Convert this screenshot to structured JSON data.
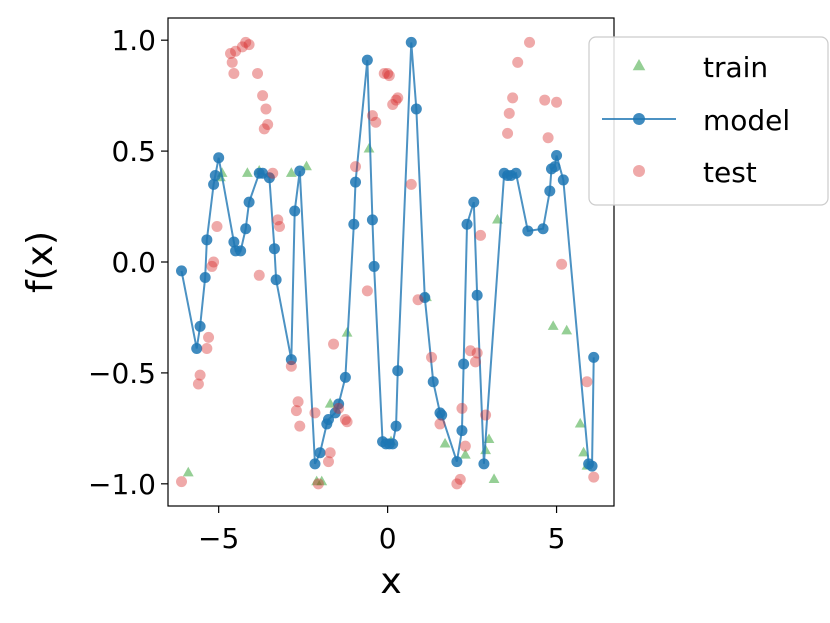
{
  "chart_data": {
    "type": "scatter",
    "xlabel": "x",
    "ylabel": "f(x)",
    "xlim": [
      -6.5,
      6.7
    ],
    "ylim": [
      -1.1,
      1.1
    ],
    "xticks": [
      -5,
      0,
      5
    ],
    "xtick_labels": [
      "−5",
      "0",
      "5"
    ],
    "yticks": [
      1.0,
      0.5,
      0.0,
      -0.5,
      -1.0
    ],
    "ytick_labels": [
      "1.0",
      "0.5",
      "0.0",
      "−0.5",
      "−1.0"
    ],
    "grid": false,
    "legend": {
      "placement": "upper-right outside",
      "entries": [
        "train",
        "model",
        "test"
      ]
    },
    "colors": {
      "train": "#2ca02c",
      "model": "#1f77b4",
      "test": "#d62728"
    },
    "series": [
      {
        "name": "train",
        "marker": "triangle",
        "x": [
          -5.9,
          -4.95,
          -4.9,
          -4.15,
          -3.8,
          -2.85,
          -2.4,
          -2.1,
          -1.95,
          -1.7,
          -1.2,
          -0.55,
          0.1,
          1.15,
          1.7,
          2.3,
          2.9,
          3.0,
          3.15,
          3.25,
          4.9,
          5.3,
          5.7,
          5.8,
          5.9
        ],
        "y": [
          -0.95,
          0.38,
          0.4,
          0.4,
          0.41,
          0.4,
          0.43,
          -0.99,
          -0.99,
          -0.64,
          -0.32,
          0.51,
          -0.81,
          -0.16,
          -0.82,
          -0.87,
          -0.85,
          -0.8,
          -0.98,
          0.19,
          -0.29,
          -0.31,
          -0.73,
          -0.86,
          -0.92
        ]
      },
      {
        "name": "model",
        "marker": "circle",
        "x": [
          -6.1,
          -5.65,
          -5.55,
          -5.4,
          -5.35,
          -5.15,
          -5.1,
          -5.0,
          -4.55,
          -4.5,
          -4.35,
          -4.2,
          -4.1,
          -3.8,
          -3.7,
          -3.5,
          -3.35,
          -3.3,
          -2.85,
          -2.75,
          -2.6,
          -2.15,
          -2.0,
          -1.8,
          -1.75,
          -1.55,
          -1.45,
          -1.25,
          -1.0,
          -0.95,
          -0.6,
          -0.45,
          -0.4,
          -0.15,
          -0.05,
          0.05,
          0.15,
          0.25,
          0.3,
          0.7,
          0.85,
          1.1,
          1.35,
          1.55,
          1.6,
          2.05,
          2.2,
          2.25,
          2.35,
          2.55,
          2.65,
          2.85,
          3.45,
          3.55,
          3.65,
          3.8,
          4.15,
          4.6,
          4.8,
          4.85,
          4.95,
          5.0,
          5.2,
          5.95,
          6.05,
          6.1
        ],
        "y": [
          -0.04,
          -0.39,
          -0.29,
          -0.07,
          0.1,
          0.35,
          0.39,
          0.47,
          0.09,
          0.05,
          0.05,
          0.15,
          0.27,
          0.4,
          0.4,
          0.38,
          0.06,
          -0.08,
          -0.44,
          0.23,
          0.41,
          -0.91,
          -0.86,
          -0.73,
          -0.71,
          -0.68,
          -0.64,
          -0.52,
          0.17,
          0.36,
          0.91,
          0.19,
          -0.02,
          -0.81,
          -0.82,
          -0.82,
          -0.82,
          -0.74,
          -0.49,
          0.99,
          0.69,
          -0.16,
          -0.54,
          -0.68,
          -0.69,
          -0.9,
          -0.76,
          -0.46,
          0.17,
          0.27,
          -0.15,
          -0.91,
          0.4,
          0.39,
          0.39,
          0.4,
          0.14,
          0.15,
          0.32,
          0.42,
          0.43,
          0.48,
          0.37,
          -0.91,
          -0.92,
          -0.43
        ]
      },
      {
        "name": "test",
        "marker": "circle",
        "x": [
          -6.1,
          -5.6,
          -5.55,
          -5.35,
          -5.3,
          -5.2,
          -5.15,
          -5.05,
          -4.65,
          -4.6,
          -4.55,
          -4.5,
          -4.3,
          -4.2,
          -4.1,
          -3.85,
          -3.8,
          -3.7,
          -3.65,
          -3.6,
          -3.55,
          -3.4,
          -3.25,
          -3.2,
          -2.85,
          -2.7,
          -2.65,
          -2.6,
          -2.15,
          -2.05,
          -1.75,
          -1.7,
          -1.6,
          -1.45,
          -1.25,
          -1.2,
          -0.95,
          -0.6,
          -0.45,
          -0.35,
          -0.1,
          0.0,
          0.05,
          0.15,
          0.25,
          0.3,
          0.7,
          0.9,
          1.3,
          1.55,
          2.05,
          2.15,
          2.2,
          2.3,
          2.45,
          2.6,
          2.65,
          2.75,
          2.9,
          3.55,
          3.6,
          3.7,
          3.85,
          4.2,
          4.65,
          4.75,
          5.0,
          5.15,
          5.9,
          6.1
        ],
        "y": [
          -0.99,
          -0.55,
          -0.51,
          -0.39,
          -0.34,
          -0.02,
          0.0,
          0.16,
          0.94,
          0.9,
          0.85,
          0.95,
          0.97,
          0.99,
          0.98,
          0.85,
          -0.06,
          0.75,
          0.6,
          0.69,
          0.62,
          0.4,
          0.19,
          0.16,
          -0.47,
          -0.67,
          -0.63,
          -0.74,
          -0.68,
          -1.0,
          -0.9,
          -0.86,
          -0.37,
          -0.66,
          -0.71,
          -0.72,
          0.43,
          -0.13,
          0.66,
          0.63,
          0.85,
          0.85,
          0.84,
          0.71,
          0.73,
          0.74,
          0.35,
          -0.17,
          -0.43,
          -0.73,
          -1.0,
          -0.98,
          -0.66,
          -0.83,
          -0.4,
          -0.45,
          -0.41,
          0.12,
          -0.69,
          0.58,
          0.67,
          0.74,
          0.9,
          0.99,
          0.73,
          0.56,
          0.72,
          -0.01,
          -0.54,
          -0.97
        ]
      }
    ]
  }
}
